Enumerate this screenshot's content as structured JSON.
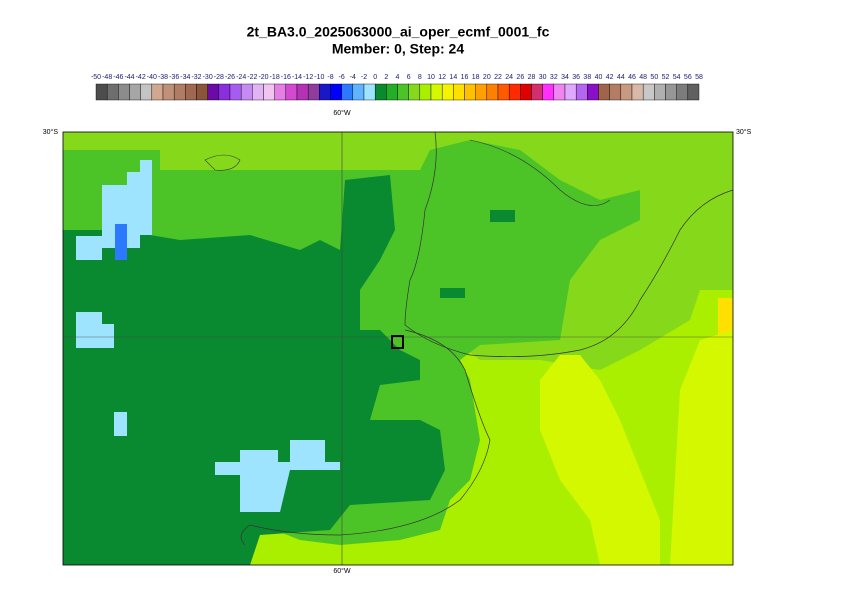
{
  "title": "2t_BA3.0_2025063000_ai_oper_ecmf_0001_fc",
  "subtitle": "Member: 0, Step: 24",
  "colorbar": {
    "levels": [
      -50,
      -48,
      -46,
      -44,
      -42,
      -40,
      -38,
      -36,
      -34,
      -32,
      -30,
      -28,
      -26,
      -24,
      -22,
      -20,
      -18,
      -16,
      -14,
      -12,
      -10,
      -8,
      -6,
      -4,
      -2,
      0,
      2,
      4,
      6,
      8,
      10,
      12,
      14,
      16,
      18,
      20,
      22,
      24,
      26,
      28,
      30,
      32,
      34,
      36,
      38,
      40,
      42,
      44,
      46,
      48,
      50,
      52,
      54,
      56,
      58
    ],
    "colors": [
      "#4d4d4d",
      "#6e6e6e",
      "#8c8c8c",
      "#a6a6a6",
      "#c4c4c4",
      "#d0a890",
      "#c09078",
      "#b07c64",
      "#a06850",
      "#8c5438",
      "#6a0aa8",
      "#8a2ee0",
      "#a65cf0",
      "#c68af4",
      "#e2b4f6",
      "#f2c4f2",
      "#e67ee6",
      "#d24ad2",
      "#b432b4",
      "#903c9c",
      "#1818c8",
      "#0000ff",
      "#2c78ff",
      "#60b4ff",
      "#9ee4ff",
      "#0a8a30",
      "#22ae28",
      "#4cc428",
      "#86d81a",
      "#aaee00",
      "#d4f800",
      "#f4f400",
      "#ffe000",
      "#ffc000",
      "#ffa000",
      "#ff8000",
      "#ff5a00",
      "#ff2a00",
      "#e00000",
      "#d03070",
      "#ff30ff",
      "#f084f0",
      "#e0a8ff",
      "#b466f0",
      "#8a10c8",
      "#a0644a",
      "#b47c62",
      "#c89a82",
      "#d8b8a8",
      "#c8c8c8",
      "#b0b0b0",
      "#969696",
      "#7c7c7c",
      "#606060"
    ]
  },
  "map": {
    "lon_label": "60°W",
    "lat_label": "30°S"
  }
}
